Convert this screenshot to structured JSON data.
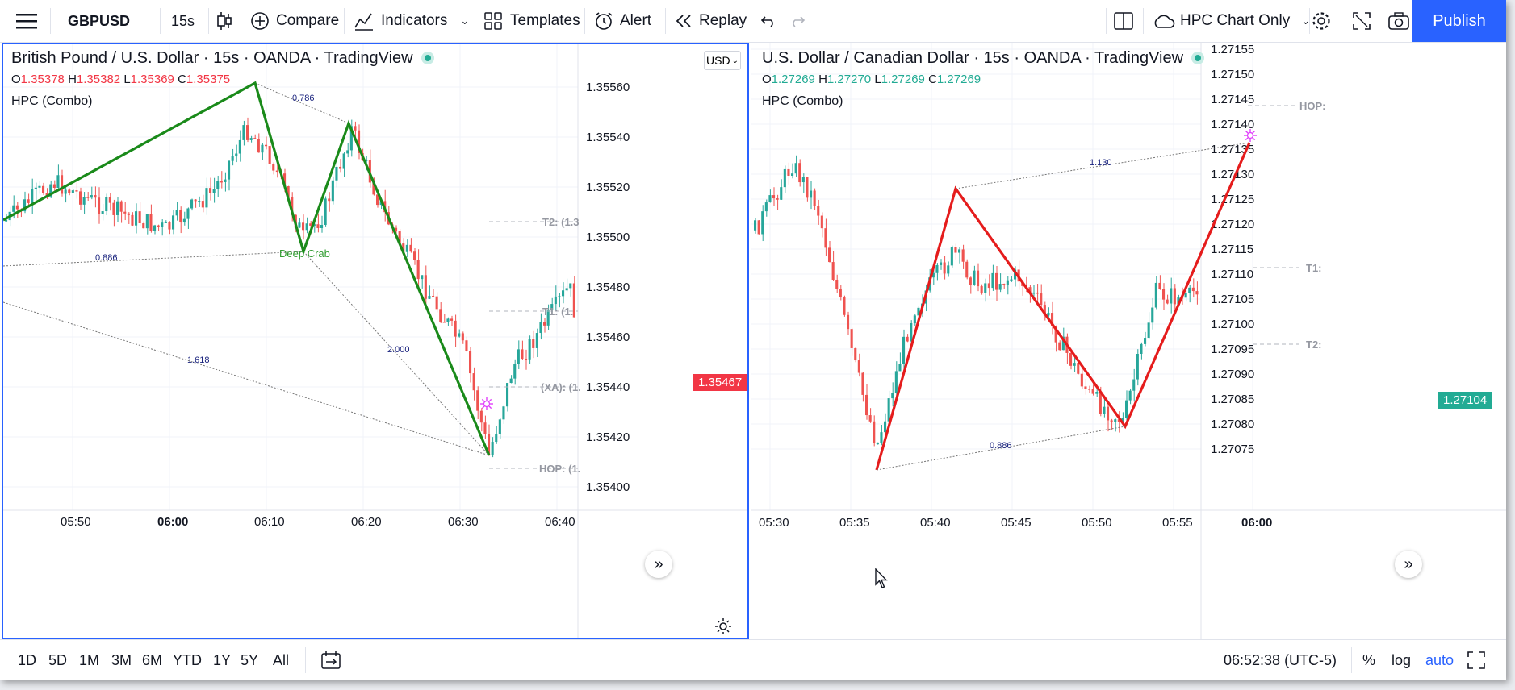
{
  "toolbar": {
    "symbol": "GBPUSD",
    "interval": "15s",
    "compare_label": "Compare",
    "indicators_label": "Indicators",
    "templates_label": "Templates",
    "alert_label": "Alert",
    "replay_label": "Replay",
    "layout_name": "HPC Chart Only",
    "publish_label": "Publish"
  },
  "chart_left": {
    "title": "British Pound / U.S. Dollar · 15s · OANDA · TradingView",
    "ohlc": {
      "o_label": "O",
      "o": "1.35378",
      "h_label": "H",
      "h": "1.35382",
      "l_label": "L",
      "l": "1.35369",
      "c_label": "C",
      "c": "1.35375",
      "color": "#f23645"
    },
    "indicator": "HPC (Combo)",
    "currency": "USD",
    "price_axis": [
      "1.35560",
      "1.35540",
      "1.35520",
      "1.35500",
      "1.35480",
      "1.35460",
      "1.35440",
      "1.35420",
      "1.35400"
    ],
    "current_price": "1.35467",
    "current_price_color": "#f23645",
    "time_axis": [
      "05:50",
      "06:00",
      "06:10",
      "06:20",
      "06:30",
      "06:40"
    ],
    "pattern_label": "Deep Crab",
    "ratios": [
      "0.786",
      "0.886",
      "1.618",
      "2.000"
    ],
    "levels": [
      "T2: (1.3",
      "T1: (1.",
      "(XA): (1.",
      "HOP: (1."
    ],
    "pattern_color": "#1a8a1a"
  },
  "chart_right": {
    "title": "U.S. Dollar / Canadian Dollar · 15s · OANDA · TradingView",
    "ohlc": {
      "o_label": "O",
      "o": "1.27269",
      "h_label": "H",
      "h": "1.27270",
      "l_label": "L",
      "l": "1.27269",
      "c_label": "C",
      "c": "1.27269",
      "color": "#22ab94"
    },
    "indicator": "HPC (Combo)",
    "price_axis": [
      "1.27155",
      "1.27150",
      "1.27145",
      "1.27140",
      "1.27135",
      "1.27130",
      "1.27125",
      "1.27120",
      "1.27115",
      "1.27110",
      "1.27105",
      "1.27100",
      "1.27095",
      "1.27090",
      "1.27085",
      "1.27080",
      "1.27075"
    ],
    "current_price": "1.27104",
    "current_price_color": "#22ab94",
    "time_axis": [
      "05:30",
      "05:35",
      "05:40",
      "05:45",
      "05:50",
      "05:55",
      "06:00"
    ],
    "ratios": [
      "1.130",
      "0.886"
    ],
    "levels": [
      "HOP:",
      "T1:",
      "T2:"
    ],
    "pattern_color": "#e51c1c"
  },
  "bottom": {
    "ranges": [
      "1D",
      "5D",
      "1M",
      "3M",
      "6M",
      "YTD",
      "1Y",
      "5Y",
      "All"
    ],
    "clock": "06:52:38 (UTC-5)",
    "percent_label": "%",
    "log_label": "log",
    "auto_label": "auto"
  },
  "colors": {
    "up": "#26a69a",
    "down": "#ef5350",
    "accent": "#2962ff"
  }
}
